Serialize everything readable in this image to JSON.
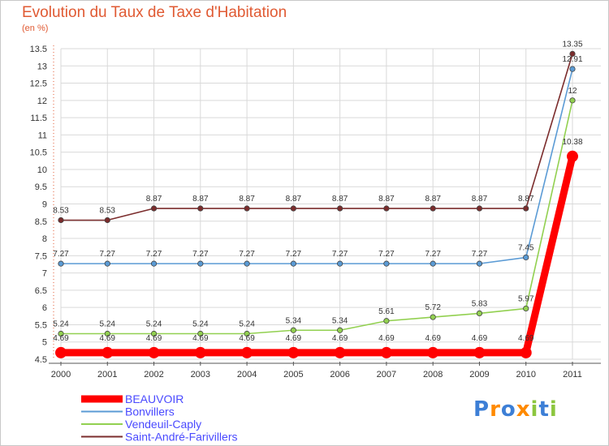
{
  "title": "Evolution du Taux de Taxe d'Habitation",
  "unit": "(en %)",
  "logo_text": "Proxiti",
  "chart_data": {
    "type": "line",
    "title": "Evolution du Taux de Taxe d'Habitation",
    "ylabel": "(en %)",
    "xlabel": "",
    "x": [
      "2000",
      "2001",
      "2002",
      "2003",
      "2004",
      "2005",
      "2006",
      "2007",
      "2008",
      "2009",
      "2010",
      "2011"
    ],
    "ylim": [
      4.5,
      13.5
    ],
    "yticks": [
      4.5,
      5,
      5.5,
      6,
      6.5,
      7,
      7.5,
      8,
      8.5,
      9,
      9.5,
      10,
      10.5,
      11,
      11.5,
      12,
      12.5,
      13,
      13.5
    ],
    "legend_position": "bottom-left",
    "series": [
      {
        "name": "BEAUVOIR",
        "color": "#ff0000",
        "values": [
          4.69,
          4.69,
          4.69,
          4.69,
          4.69,
          4.69,
          4.69,
          4.69,
          4.69,
          4.69,
          4.69,
          10.38
        ],
        "labels": [
          "4.69",
          "4.69",
          "4.69",
          "4.69",
          "4.69",
          "4.69",
          "4.69",
          "4.69",
          "4.69",
          "4.69",
          "4.69",
          "10.38"
        ]
      },
      {
        "name": "Bonvillers",
        "color": "#5b9bd5",
        "values": [
          7.27,
          7.27,
          7.27,
          7.27,
          7.27,
          7.27,
          7.27,
          7.27,
          7.27,
          7.27,
          7.45,
          12.91
        ],
        "labels": [
          "7.27",
          "7.27",
          "7.27",
          "7.27",
          "7.27",
          "7.27",
          "7.27",
          "7.27",
          "7.27",
          "7.27",
          "7.45",
          "12.91"
        ]
      },
      {
        "name": "Vendeuil-Caply",
        "color": "#92d050",
        "values": [
          5.24,
          5.24,
          5.24,
          5.24,
          5.24,
          5.34,
          5.34,
          5.61,
          5.72,
          5.83,
          5.97,
          12
        ],
        "labels": [
          "5.24",
          "5.24",
          "5.24",
          "5.24",
          "5.24",
          "5.34",
          "5.34",
          "5.61",
          "5.72",
          "5.83",
          "5.97",
          "12"
        ]
      },
      {
        "name": "Saint-André-Farivillers",
        "color": "#7b2c2c",
        "values": [
          8.53,
          8.53,
          8.87,
          8.87,
          8.87,
          8.87,
          8.87,
          8.87,
          8.87,
          8.87,
          8.87,
          13.35
        ],
        "labels": [
          "8.53",
          "8.53",
          "8.87",
          "8.87",
          "8.87",
          "8.87",
          "8.87",
          "8.87",
          "8.87",
          "8.87",
          "8.87",
          "13.35"
        ]
      }
    ]
  }
}
